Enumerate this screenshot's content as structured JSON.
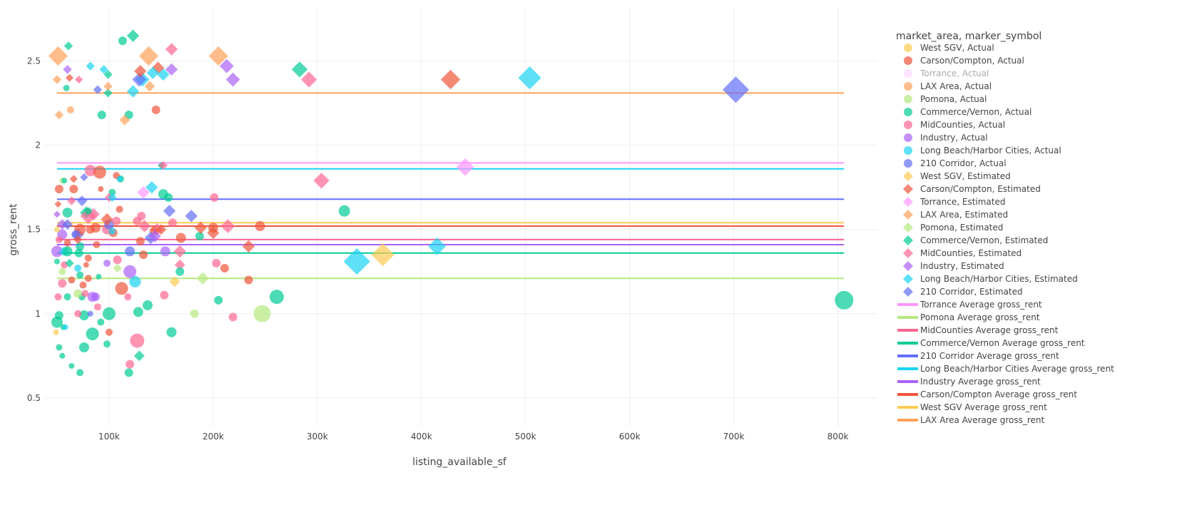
{
  "chart_data": {
    "type": "scatter",
    "xlabel": "listing_available_sf",
    "ylabel": "gross_rent",
    "xlim": [
      37700,
      838000
    ],
    "ylim": [
      0.33,
      2.82
    ],
    "x_ticks": [
      100000,
      200000,
      300000,
      400000,
      500000,
      600000,
      700000,
      800000
    ],
    "x_tick_labels": [
      "100k",
      "200k",
      "300k",
      "400k",
      "500k",
      "600k",
      "700k",
      "800k"
    ],
    "y_ticks": [
      0.5,
      1,
      1.5,
      2,
      2.5
    ],
    "y_tick_labels": [
      "0.5",
      "1",
      "1.5",
      "2",
      "2.5"
    ],
    "grid": true,
    "legend_title": "market_area, marker_symbol",
    "legend_position": "right",
    "groups": [
      {
        "name": "West SGV",
        "color": "#FECB52"
      },
      {
        "name": "Carson/Compton",
        "color": "#EF553B"
      },
      {
        "name": "Torrance",
        "color": "#FF97FF"
      },
      {
        "name": "LAX Area",
        "color": "#FFA15A"
      },
      {
        "name": "Pomona",
        "color": "#B6E880"
      },
      {
        "name": "Commerce/Vernon",
        "color": "#00CC96"
      },
      {
        "name": "MidCounties",
        "color": "#FF6692"
      },
      {
        "name": "Industry",
        "color": "#AB63FA"
      },
      {
        "name": "Long Beach/Harbor Cities",
        "color": "#19D3F3"
      },
      {
        "name": "210 Corridor",
        "color": "#636EFA"
      }
    ],
    "symbols": [
      "Actual",
      "Estimated"
    ],
    "hidden_traces": [
      "Torrance, Actual"
    ],
    "legend_entries": [
      "West SGV, Actual",
      "Carson/Compton, Actual",
      "Torrance, Actual",
      "LAX Area, Actual",
      "Pomona, Actual",
      "Commerce/Vernon, Actual",
      "MidCounties, Actual",
      "Industry, Actual",
      "Long Beach/Harbor Cities, Actual",
      "210 Corridor, Actual",
      "West SGV, Estimated",
      "Carson/Compton, Estimated",
      "Torrance, Estimated",
      "LAX Area, Estimated",
      "Pomona, Estimated",
      "Commerce/Vernon, Estimated",
      "MidCounties, Estimated",
      "Industry, Estimated",
      "Long Beach/Harbor Cities, Estimated",
      "210 Corridor, Estimated"
    ],
    "average_lines": [
      {
        "name": "Torrance Average gross_rent",
        "group": 2,
        "value": 1.895
      },
      {
        "name": "Pomona Average gross_rent",
        "group": 4,
        "value": 1.21
      },
      {
        "name": "MidCounties Average gross_rent",
        "group": 6,
        "value": 1.44
      },
      {
        "name": "Commerce/Vernon Average gross_rent",
        "group": 5,
        "value": 1.36
      },
      {
        "name": "210 Corridor Average gross_rent",
        "group": 9,
        "value": 1.68
      },
      {
        "name": "Long Beach/Harbor Cities Average gross_rent",
        "group": 8,
        "value": 1.86
      },
      {
        "name": "Industry Average gross_rent",
        "group": 7,
        "value": 1.41
      },
      {
        "name": "Carson/Compton Average gross_rent",
        "group": 1,
        "value": 1.52
      },
      {
        "name": "West SGV Average gross_rent",
        "group": 0,
        "value": 1.54
      },
      {
        "name": "LAX Area Average gross_rent",
        "group": 3,
        "value": 2.31
      }
    ],
    "average_line_x_range": [
      50000,
      806000
    ],
    "point_fields": [
      "group_index",
      "symbol_index",
      "listing_available_sf_k",
      "gross_rent",
      "marker_size_value"
    ],
    "points": [
      [
        5,
        0,
        806,
        1.08,
        26
      ],
      [
        9,
        1,
        702,
        2.33,
        30
      ],
      [
        8,
        1,
        504,
        2.4,
        26
      ],
      [
        1,
        1,
        428,
        2.39,
        22
      ],
      [
        2,
        1,
        442,
        1.87,
        20
      ],
      [
        8,
        1,
        415,
        1.4,
        20
      ],
      [
        8,
        1,
        338,
        1.31,
        30
      ],
      [
        0,
        1,
        363,
        1.35,
        26
      ],
      [
        5,
        0,
        326,
        1.61,
        16
      ],
      [
        6,
        1,
        304,
        1.79,
        18
      ],
      [
        5,
        1,
        283,
        2.45,
        18
      ],
      [
        6,
        1,
        292,
        2.39,
        18
      ],
      [
        5,
        0,
        261,
        1.1,
        20
      ],
      [
        4,
        0,
        247,
        1.0,
        24
      ],
      [
        1,
        0,
        245,
        1.52,
        14
      ],
      [
        1,
        0,
        234,
        1.2,
        12
      ],
      [
        1,
        1,
        234,
        1.4,
        14
      ],
      [
        6,
        0,
        219,
        0.98,
        12
      ],
      [
        1,
        0,
        211,
        1.27,
        12
      ],
      [
        6,
        0,
        203,
        1.3,
        12
      ],
      [
        5,
        0,
        205,
        1.08,
        12
      ],
      [
        6,
        0,
        201,
        1.69,
        12
      ],
      [
        7,
        1,
        213,
        2.47,
        16
      ],
      [
        7,
        1,
        219,
        2.39,
        16
      ],
      [
        3,
        1,
        205,
        2.53,
        22
      ],
      [
        6,
        1,
        214,
        1.52,
        16
      ],
      [
        1,
        1,
        200,
        1.48,
        14
      ],
      [
        1,
        0,
        200,
        1.51,
        14
      ],
      [
        4,
        1,
        190,
        1.21,
        14
      ],
      [
        4,
        0,
        182,
        1.0,
        12
      ],
      [
        5,
        0,
        187,
        1.46,
        12
      ],
      [
        1,
        1,
        188,
        1.51,
        14
      ],
      [
        9,
        1,
        179,
        1.58,
        14
      ],
      [
        1,
        0,
        169,
        1.45,
        14
      ],
      [
        6,
        1,
        168,
        1.37,
        14
      ],
      [
        6,
        1,
        168,
        1.29,
        12
      ],
      [
        5,
        0,
        168,
        1.25,
        12
      ],
      [
        0,
        1,
        163,
        1.19,
        12
      ],
      [
        5,
        0,
        160,
        0.89,
        14
      ],
      [
        9,
        1,
        158,
        1.61,
        14
      ],
      [
        6,
        1,
        160,
        2.57,
        14
      ],
      [
        7,
        1,
        160,
        2.45,
        14
      ],
      [
        5,
        0,
        157,
        1.69,
        12
      ],
      [
        5,
        0,
        152,
        1.71,
        14
      ],
      [
        7,
        0,
        154,
        1.37,
        14
      ],
      [
        6,
        0,
        153,
        1.11,
        12
      ],
      [
        6,
        0,
        161,
        1.54,
        12
      ],
      [
        8,
        1,
        152,
        2.42,
        14
      ],
      [
        1,
        1,
        147,
        2.46,
        14
      ],
      [
        8,
        1,
        142,
        2.43,
        14
      ],
      [
        3,
        1,
        138,
        2.53,
        22
      ],
      [
        8,
        1,
        141,
        1.75,
        14
      ],
      [
        1,
        0,
        145,
        2.21,
        12
      ],
      [
        3,
        1,
        139,
        2.35,
        12
      ],
      [
        8,
        1,
        132,
        2.39,
        16
      ],
      [
        9,
        1,
        129,
        2.39,
        16
      ],
      [
        1,
        1,
        130,
        2.44,
        14
      ],
      [
        2,
        1,
        133,
        1.72,
        14
      ],
      [
        8,
        1,
        123,
        2.32,
        14
      ],
      [
        5,
        1,
        123,
        2.65,
        14
      ],
      [
        5,
        0,
        113,
        2.62,
        12
      ],
      [
        5,
        0,
        137,
        1.05,
        14
      ],
      [
        5,
        0,
        128,
        1.01,
        14
      ],
      [
        6,
        0,
        127,
        0.84,
        20
      ],
      [
        8,
        0,
        125,
        1.19,
        16
      ],
      [
        7,
        0,
        120,
        1.25,
        18
      ],
      [
        6,
        0,
        120,
        0.7,
        12
      ],
      [
        5,
        0,
        119,
        0.65,
        12
      ],
      [
        5,
        1,
        129,
        0.75,
        12
      ],
      [
        1,
        0,
        112,
        1.15,
        18
      ],
      [
        5,
        0,
        119,
        2.18,
        12
      ],
      [
        3,
        1,
        115,
        2.15,
        12
      ],
      [
        5,
        0,
        100,
        1.0,
        18
      ],
      [
        7,
        0,
        84,
        1.1,
        14
      ],
      [
        5,
        0,
        84,
        0.88,
        18
      ],
      [
        6,
        0,
        82,
        1.85,
        16
      ],
      [
        1,
        0,
        91,
        1.84,
        18
      ],
      [
        5,
        0,
        76,
        0.8,
        14
      ],
      [
        5,
        0,
        76,
        0.99,
        14
      ],
      [
        3,
        1,
        51,
        2.53,
        22
      ],
      [
        5,
        0,
        93,
        2.18,
        12
      ],
      [
        5,
        1,
        99,
        2.31,
        10
      ],
      [
        3,
        1,
        99,
        2.35,
        10
      ],
      [
        5,
        1,
        99,
        2.42,
        10
      ],
      [
        8,
        1,
        95,
        2.45,
        10
      ],
      [
        8,
        1,
        82,
        2.47,
        10
      ],
      [
        9,
        1,
        89,
        2.33,
        10
      ],
      [
        7,
        1,
        60,
        2.45,
        10
      ],
      [
        5,
        1,
        61,
        2.59,
        10
      ],
      [
        3,
        0,
        63,
        2.21,
        10
      ],
      [
        3,
        1,
        52,
        2.18,
        10
      ],
      [
        3,
        1,
        50,
        2.39,
        10
      ],
      [
        5,
        0,
        59,
        2.34,
        9
      ],
      [
        1,
        1,
        62,
        2.4,
        9
      ],
      [
        6,
        1,
        71,
        2.39,
        9
      ],
      [
        9,
        1,
        76,
        1.81,
        9
      ],
      [
        1,
        1,
        66,
        1.8,
        9
      ],
      [
        1,
        0,
        52,
        1.74,
        12
      ],
      [
        1,
        0,
        66,
        1.74,
        12
      ],
      [
        5,
        0,
        60,
        1.6,
        14
      ],
      [
        9,
        1,
        74,
        1.67,
        12
      ],
      [
        6,
        1,
        64,
        1.67,
        10
      ],
      [
        7,
        1,
        50,
        1.59,
        8
      ],
      [
        1,
        1,
        51,
        1.65,
        8
      ],
      [
        7,
        1,
        55,
        1.53,
        12
      ],
      [
        9,
        1,
        70,
        1.47,
        14
      ],
      [
        1,
        0,
        72,
        1.5,
        16
      ],
      [
        5,
        1,
        78,
        1.6,
        14
      ],
      [
        6,
        1,
        80,
        1.58,
        18
      ],
      [
        6,
        1,
        85,
        1.59,
        14
      ],
      [
        9,
        1,
        60,
        1.53,
        12
      ],
      [
        7,
        0,
        55,
        1.47,
        14
      ],
      [
        1,
        0,
        87,
        1.51,
        14
      ],
      [
        1,
        0,
        82,
        1.5,
        12
      ],
      [
        6,
        0,
        98,
        1.5,
        14
      ],
      [
        1,
        0,
        104,
        1.48,
        12
      ],
      [
        9,
        0,
        100,
        1.53,
        14
      ],
      [
        1,
        1,
        98,
        1.56,
        14
      ],
      [
        6,
        0,
        107,
        1.55,
        12
      ],
      [
        6,
        0,
        108,
        1.32,
        12
      ],
      [
        1,
        0,
        110,
        1.62,
        10
      ],
      [
        5,
        0,
        103,
        1.72,
        10
      ],
      [
        6,
        1,
        100,
        1.69,
        10
      ],
      [
        8,
        1,
        103,
        1.69,
        10
      ],
      [
        5,
        0,
        111,
        1.8,
        10
      ],
      [
        1,
        0,
        107,
        1.82,
        10
      ],
      [
        8,
        0,
        103,
        1.49,
        10
      ],
      [
        9,
        0,
        120,
        1.37,
        14
      ],
      [
        6,
        0,
        118,
        1.1,
        10
      ],
      [
        4,
        1,
        108,
        1.27,
        10
      ],
      [
        7,
        0,
        98,
        1.3,
        10
      ],
      [
        5,
        0,
        98,
        0.82,
        10
      ],
      [
        1,
        0,
        100,
        0.89,
        10
      ],
      [
        6,
        0,
        89,
        1.04,
        10
      ],
      [
        5,
        0,
        92,
        0.95,
        10
      ],
      [
        9,
        0,
        82,
        1.0,
        8
      ],
      [
        5,
        0,
        72,
        0.65,
        10
      ],
      [
        5,
        0,
        64,
        0.69,
        8
      ],
      [
        5,
        0,
        55,
        0.75,
        8
      ],
      [
        5,
        0,
        52,
        0.8,
        9
      ],
      [
        5,
        0,
        50,
        0.95,
        16
      ],
      [
        0,
        0,
        49,
        0.89,
        8
      ],
      [
        5,
        0,
        52,
        0.99,
        12
      ],
      [
        5,
        0,
        56,
        0.92,
        8
      ],
      [
        8,
        0,
        58,
        0.92,
        8
      ],
      [
        6,
        0,
        70,
        1.0,
        10
      ],
      [
        6,
        0,
        51,
        1.1,
        10
      ],
      [
        5,
        0,
        60,
        1.1,
        10
      ],
      [
        5,
        0,
        74,
        1.1,
        10
      ],
      [
        4,
        0,
        70,
        1.12,
        12
      ],
      [
        6,
        0,
        55,
        1.18,
        12
      ],
      [
        1,
        0,
        64,
        1.2,
        10
      ],
      [
        5,
        0,
        72,
        1.23,
        10
      ],
      [
        4,
        0,
        55,
        1.25,
        10
      ],
      [
        1,
        0,
        80,
        1.21,
        10
      ],
      [
        6,
        0,
        57,
        1.29,
        10
      ],
      [
        5,
        0,
        50,
        1.31,
        8
      ],
      [
        8,
        0,
        70,
        1.27,
        10
      ],
      [
        5,
        0,
        72,
        1.4,
        12
      ],
      [
        7,
        0,
        50,
        1.37,
        16
      ],
      [
        8,
        0,
        57,
        1.37,
        12
      ],
      [
        5,
        0,
        60,
        1.37,
        14
      ],
      [
        9,
        0,
        68,
        1.47,
        12
      ],
      [
        1,
        0,
        80,
        1.33,
        10
      ],
      [
        5,
        1,
        62,
        1.3,
        10
      ],
      [
        1,
        1,
        70,
        1.44,
        10
      ],
      [
        6,
        0,
        52,
        1.44,
        10
      ],
      [
        1,
        0,
        60,
        1.42,
        10
      ],
      [
        0,
        0,
        50,
        1.5,
        8
      ],
      [
        4,
        1,
        55,
        1.79,
        8
      ],
      [
        5,
        0,
        57,
        1.79,
        8
      ],
      [
        5,
        0,
        80,
        1.61,
        10
      ],
      [
        1,
        0,
        78,
        1.29,
        8
      ],
      [
        1,
        0,
        88,
        1.41,
        10
      ],
      [
        1,
        0,
        92,
        1.74,
        8
      ],
      [
        5,
        0,
        90,
        1.22,
        8
      ],
      [
        6,
        0,
        77,
        1.12,
        10
      ],
      [
        7,
        0,
        87,
        1.1,
        12
      ],
      [
        1,
        0,
        75,
        1.17,
        10
      ],
      [
        5,
        0,
        71,
        1.36,
        12
      ],
      [
        1,
        0,
        130,
        1.43,
        12
      ],
      [
        6,
        0,
        131,
        1.58,
        12
      ],
      [
        1,
        0,
        133,
        1.35,
        12
      ],
      [
        6,
        1,
        134,
        1.52,
        14
      ],
      [
        6,
        1,
        146,
        1.5,
        14
      ],
      [
        1,
        0,
        143,
        1.49,
        12
      ],
      [
        1,
        1,
        150,
        1.5,
        12
      ],
      [
        9,
        1,
        140,
        1.45,
        14
      ],
      [
        7,
        1,
        144,
        1.46,
        14
      ],
      [
        6,
        0,
        127,
        1.55,
        12
      ],
      [
        5,
        1,
        150,
        1.88,
        8
      ],
      [
        6,
        1,
        152,
        1.88,
        10
      ],
      [
        8,
        0,
        110,
        1.8,
        8
      ]
    ]
  }
}
